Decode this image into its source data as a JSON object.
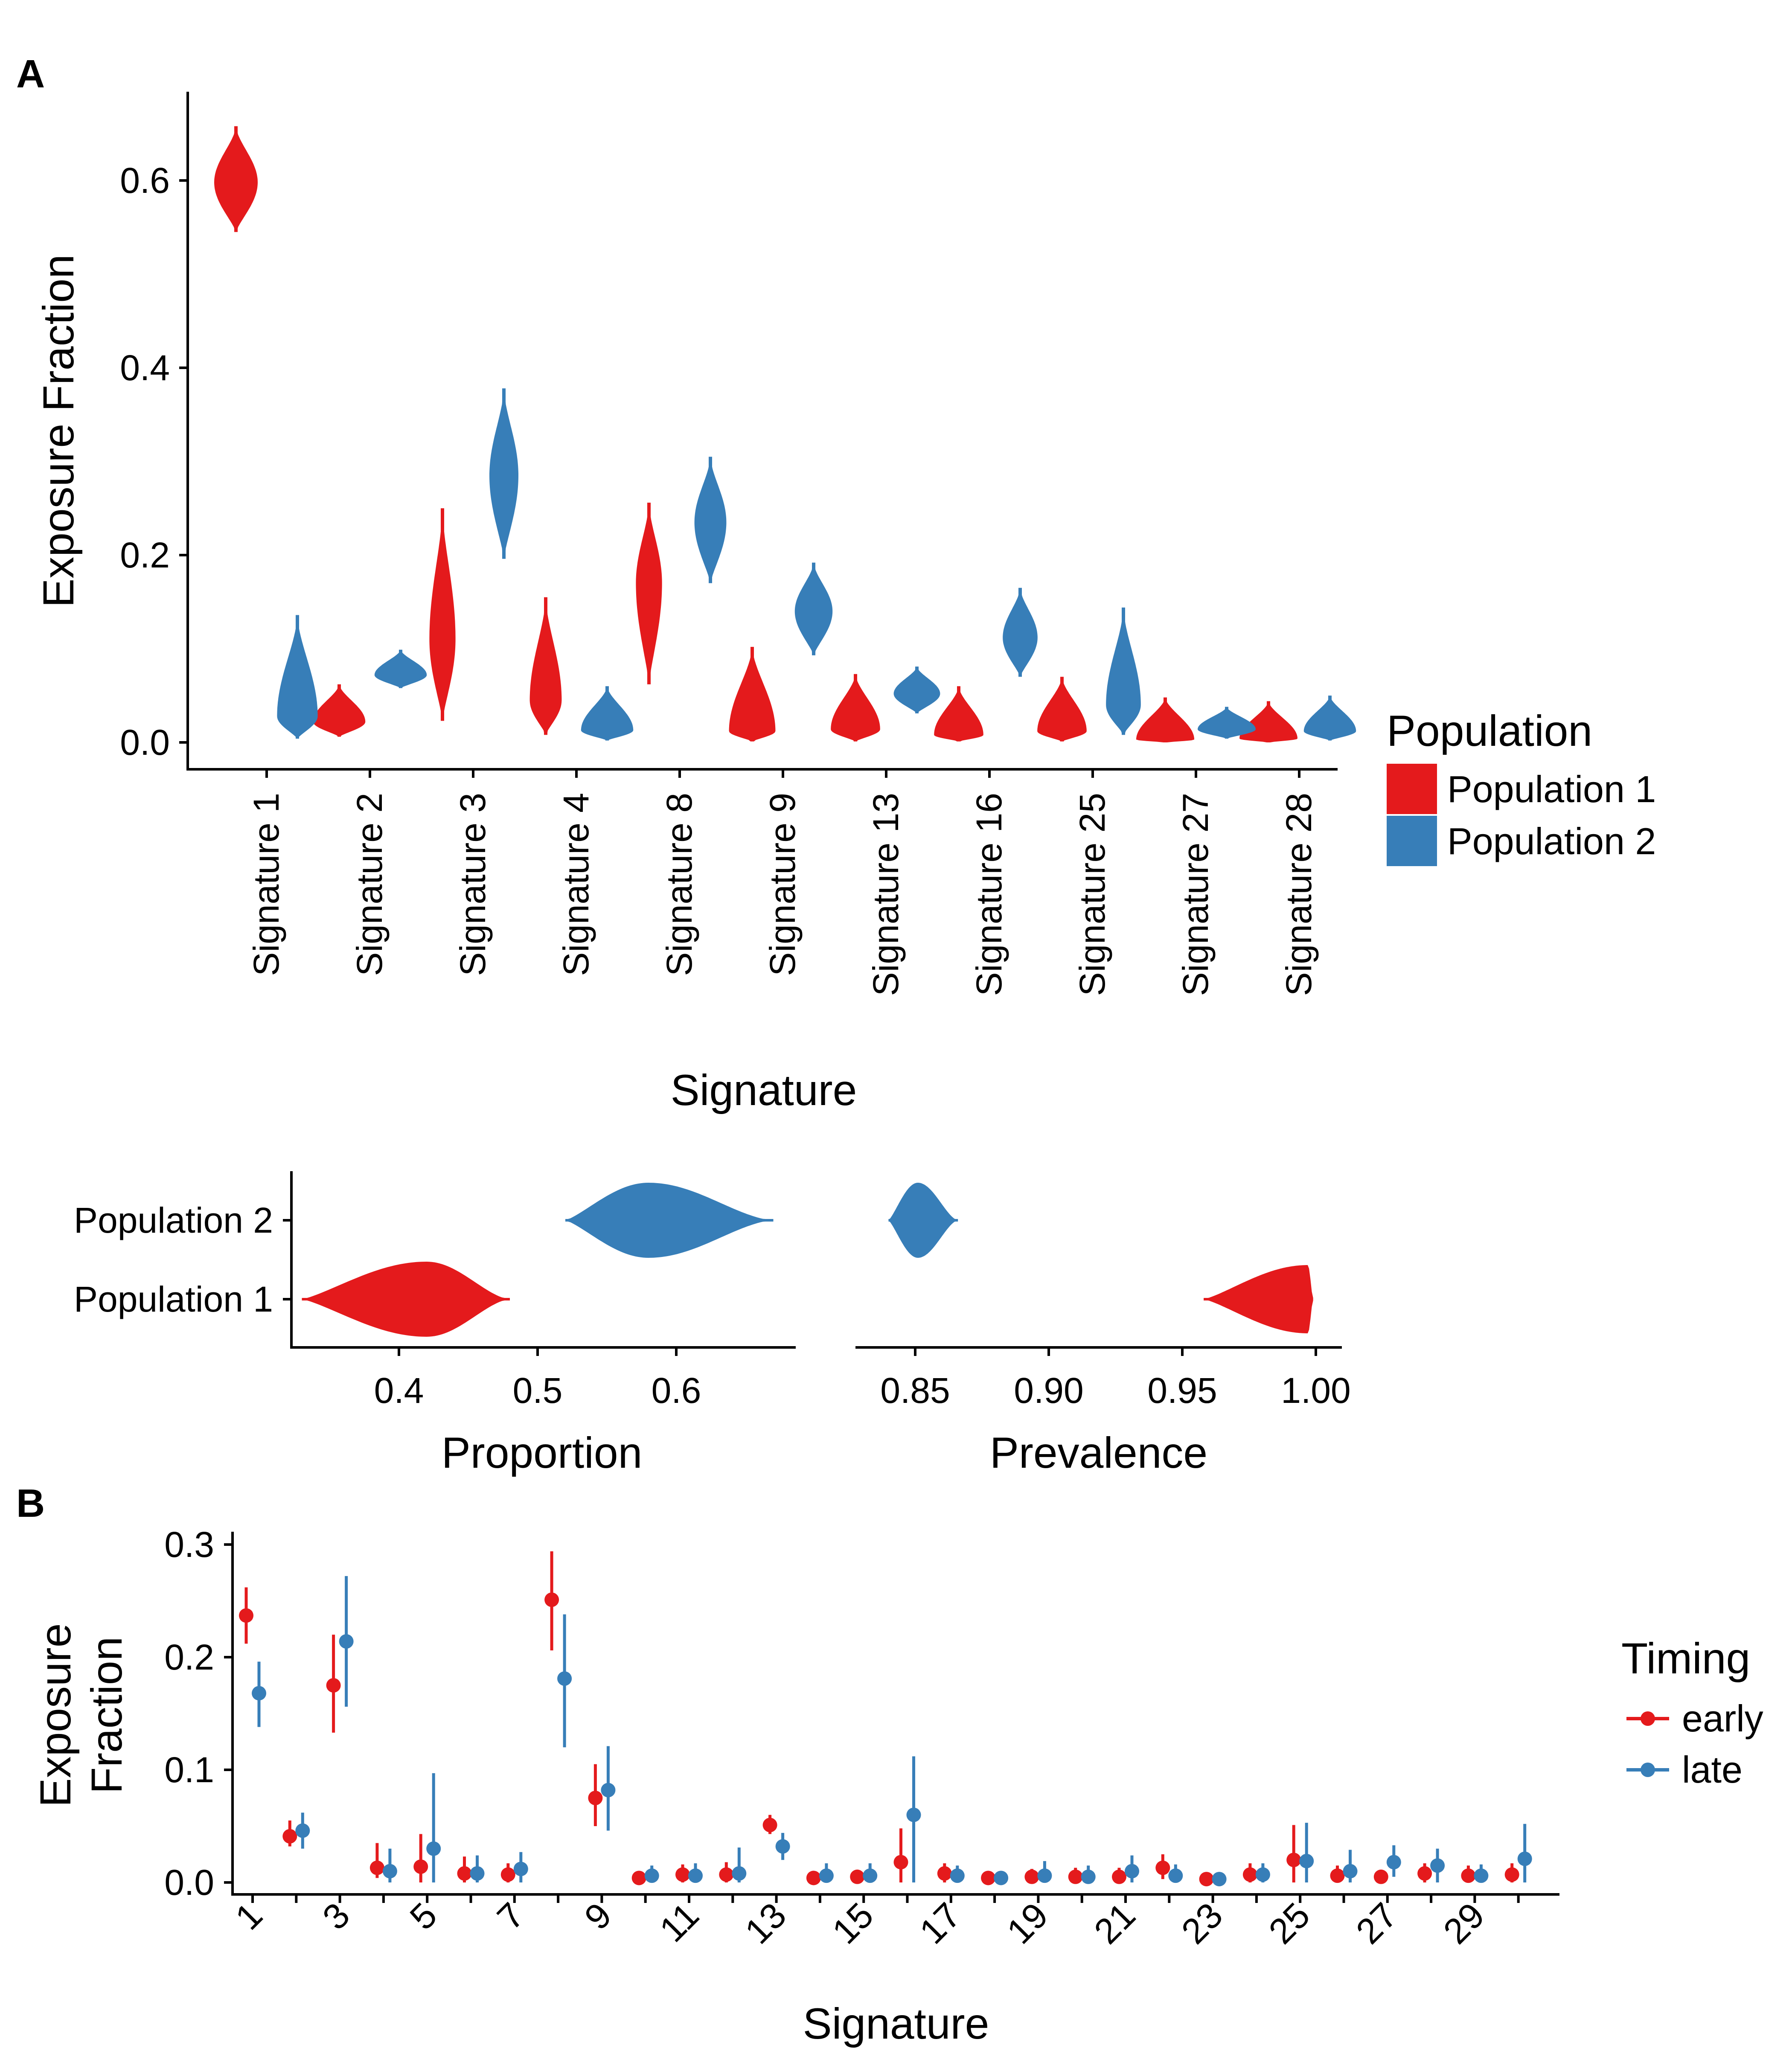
{
  "colors": {
    "population1": "#e41a1c",
    "population2": "#377eb8",
    "early": "#e41a1c",
    "late": "#377eb8"
  },
  "panel_a_label": "A",
  "panel_b_label": "B",
  "chart_data": [
    {
      "type": "violin",
      "ylabel": "Exposure Fraction",
      "xlabel": "Signature",
      "ylim": [
        0,
        0.68
      ],
      "yticks": [
        "0.0",
        "0.2",
        "0.4",
        "0.6"
      ],
      "ytick_values": [
        0,
        0.2,
        0.4,
        0.6
      ],
      "categories": [
        "Signature 1",
        "Signature 2",
        "Signature 3",
        "Signature 4",
        "Signature 8",
        "Signature 9",
        "Signature 13",
        "Signature 16",
        "Signature 25",
        "Signature 27",
        "Signature 28"
      ],
      "legend": {
        "title": "Population",
        "placement": "right",
        "entries": [
          "Population 1",
          "Population 2"
        ]
      },
      "series": [
        {
          "name": "Population 1",
          "values": [
            {
              "min": 0.545,
              "max": 0.658,
              "mode": 0.598,
              "peak": 0.75
            },
            {
              "min": 0.006,
              "max": 0.062,
              "mode": 0.022,
              "peak": 0.9
            },
            {
              "min": 0.023,
              "max": 0.25,
              "mode": 0.11,
              "peak": 0.45
            },
            {
              "min": 0.008,
              "max": 0.155,
              "mode": 0.045,
              "peak": 0.55
            },
            {
              "min": 0.062,
              "max": 0.256,
              "mode": 0.17,
              "peak": 0.45
            },
            {
              "min": 0.001,
              "max": 0.102,
              "mode": 0.012,
              "peak": 0.8
            },
            {
              "min": 0.001,
              "max": 0.073,
              "mode": 0.014,
              "peak": 0.85
            },
            {
              "min": 0.001,
              "max": 0.06,
              "mode": 0.008,
              "peak": 0.85
            },
            {
              "min": 0.001,
              "max": 0.07,
              "mode": 0.012,
              "peak": 0.85
            },
            {
              "min": 0.0,
              "max": 0.048,
              "mode": 0.003,
              "peak": 1.0
            },
            {
              "min": 0.0,
              "max": 0.044,
              "mode": 0.004,
              "peak": 1.0
            }
          ]
        },
        {
          "name": "Population 2",
          "values": [
            {
              "min": 0.004,
              "max": 0.136,
              "mode": 0.028,
              "peak": 0.7
            },
            {
              "min": 0.058,
              "max": 0.099,
              "mode": 0.072,
              "peak": 0.9
            },
            {
              "min": 0.196,
              "max": 0.378,
              "mode": 0.285,
              "peak": 0.5
            },
            {
              "min": 0.002,
              "max": 0.06,
              "mode": 0.013,
              "peak": 0.9
            },
            {
              "min": 0.17,
              "max": 0.305,
              "mode": 0.235,
              "peak": 0.55
            },
            {
              "min": 0.093,
              "max": 0.192,
              "mode": 0.14,
              "peak": 0.65
            },
            {
              "min": 0.031,
              "max": 0.081,
              "mode": 0.052,
              "peak": 0.8
            },
            {
              "min": 0.07,
              "max": 0.165,
              "mode": 0.112,
              "peak": 0.6
            },
            {
              "min": 0.008,
              "max": 0.144,
              "mode": 0.04,
              "peak": 0.6
            },
            {
              "min": 0.004,
              "max": 0.038,
              "mode": 0.014,
              "peak": 1.0
            },
            {
              "min": 0.002,
              "max": 0.05,
              "mode": 0.012,
              "peak": 0.9
            }
          ]
        }
      ]
    },
    {
      "type": "violin",
      "xlabel": "Proportion",
      "xlim": [
        0.32,
        0.69
      ],
      "xticks": [
        "0.4",
        "0.5",
        "0.6"
      ],
      "xtick_values": [
        0.4,
        0.5,
        0.6
      ],
      "categories": [
        "Population 1",
        "Population 2"
      ],
      "series": [
        {
          "name": "Population 1",
          "values": [
            {
              "min": 0.33,
              "max": 0.48,
              "mode": 0.42
            }
          ]
        },
        {
          "name": "Population 2",
          "values": [
            {
              "min": 0.52,
              "max": 0.67,
              "mode": 0.58
            }
          ]
        }
      ]
    },
    {
      "type": "violin",
      "xlabel": "Prevalence",
      "xlim": [
        0.83,
        1.005
      ],
      "xticks": [
        "0.85",
        "0.90",
        "0.95",
        "1.00"
      ],
      "xtick_values": [
        0.85,
        0.9,
        0.95,
        1.0
      ],
      "categories": [
        "Population 1",
        "Population 2"
      ],
      "series": [
        {
          "name": "Population 1",
          "values": [
            {
              "min": 0.958,
              "max": 0.999,
              "mode": 0.997
            }
          ]
        },
        {
          "name": "Population 2",
          "values": [
            {
              "min": 0.84,
              "max": 0.866,
              "mode": 0.851
            }
          ]
        }
      ]
    },
    {
      "type": "scatter",
      "ylabel": "Exposure Fraction",
      "ylabel_lines": [
        "Exposure",
        "Fraction"
      ],
      "xlabel": "Signature",
      "ylim": [
        -0.01,
        0.305
      ],
      "yticks": [
        "0.0",
        "0.1",
        "0.2",
        "0.3"
      ],
      "ytick_values": [
        0,
        0.1,
        0.2,
        0.3
      ],
      "x": [
        1,
        2,
        3,
        4,
        5,
        6,
        7,
        8,
        9,
        10,
        11,
        12,
        13,
        14,
        15,
        16,
        17,
        18,
        19,
        20,
        21,
        22,
        23,
        24,
        25,
        26,
        27,
        28,
        29,
        30
      ],
      "xticks": [
        "1",
        "3",
        "5",
        "7",
        "9",
        "11",
        "13",
        "15",
        "17",
        "19",
        "21",
        "23",
        "25",
        "27",
        "29"
      ],
      "xtick_values": [
        1,
        3,
        5,
        7,
        9,
        11,
        13,
        15,
        17,
        19,
        21,
        23,
        25,
        27,
        29
      ],
      "legend": {
        "title": "Timing",
        "placement": "right",
        "entries": [
          "early",
          "late"
        ]
      },
      "series": [
        {
          "name": "early",
          "values": [
            0.237,
            0.041,
            0.175,
            0.013,
            0.014,
            0.008,
            0.007,
            0.251,
            0.075,
            0.004,
            0.007,
            0.007,
            0.051,
            0.004,
            0.005,
            0.018,
            0.008,
            0.004,
            0.005,
            0.005,
            0.005,
            0.013,
            0.003,
            0.007,
            0.02,
            0.006,
            0.005,
            0.008,
            0.006,
            0.007
          ],
          "low": [
            0.212,
            0.032,
            0.133,
            0.004,
            0.0,
            0.0,
            0.0,
            0.206,
            0.05,
            0.0,
            0.0,
            0.0,
            0.043,
            0.0,
            0.0,
            0.0,
            0.0,
            0.0,
            0.0,
            0.0,
            0.0,
            0.003,
            0.0,
            0.0,
            0.0,
            0.0,
            0.0,
            0.0,
            0.0,
            0.0
          ],
          "high": [
            0.262,
            0.055,
            0.22,
            0.035,
            0.043,
            0.023,
            0.017,
            0.294,
            0.105,
            0.008,
            0.016,
            0.018,
            0.06,
            0.01,
            0.011,
            0.048,
            0.017,
            0.008,
            0.012,
            0.013,
            0.013,
            0.025,
            0.006,
            0.017,
            0.051,
            0.015,
            0.01,
            0.017,
            0.015,
            0.017
          ]
        },
        {
          "name": "late",
          "values": [
            0.168,
            0.046,
            0.214,
            0.01,
            0.03,
            0.008,
            0.012,
            0.181,
            0.082,
            0.006,
            0.006,
            0.008,
            0.032,
            0.006,
            0.006,
            0.06,
            0.006,
            0.004,
            0.006,
            0.005,
            0.01,
            0.006,
            0.003,
            0.007,
            0.019,
            0.01,
            0.018,
            0.015,
            0.006,
            0.021
          ],
          "low": [
            0.138,
            0.03,
            0.156,
            0.0,
            0.0,
            0.0,
            0.0,
            0.12,
            0.046,
            0.0,
            0.0,
            0.0,
            0.02,
            0.0,
            0.0,
            0.0,
            0.0,
            0.0,
            0.0,
            0.0,
            0.0,
            0.0,
            0.0,
            0.0,
            0.0,
            0.0,
            0.005,
            0.0,
            0.0,
            0.0
          ],
          "high": [
            0.196,
            0.062,
            0.272,
            0.03,
            0.097,
            0.024,
            0.027,
            0.238,
            0.121,
            0.015,
            0.017,
            0.031,
            0.044,
            0.017,
            0.017,
            0.112,
            0.015,
            0.01,
            0.019,
            0.015,
            0.024,
            0.016,
            0.008,
            0.017,
            0.053,
            0.029,
            0.033,
            0.03,
            0.016,
            0.052
          ]
        }
      ]
    }
  ]
}
